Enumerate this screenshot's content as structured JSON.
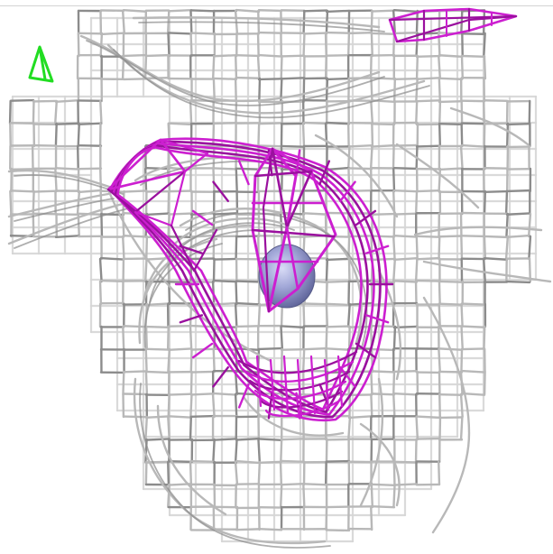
{
  "scene": {
    "description_free": true,
    "colors": {
      "background": "#ffffff",
      "grey_mesh": "#b8b8b8",
      "grey_mesh_dark": "#8c8c8c",
      "grey_mesh_light": "#d6d6d6",
      "magenta_mesh": "#cc1fd0",
      "magenta_mesh_dark": "#9a109e",
      "green_marker": "#22dd22",
      "atom_sphere": "#8e94c8",
      "atom_sphere_highlight": "#c6cbef",
      "top_rule": "#d4d4d4"
    },
    "icons": {
      "green_marker": "tetrahedron-marker-icon",
      "atom": "atom-sphere-icon"
    }
  }
}
